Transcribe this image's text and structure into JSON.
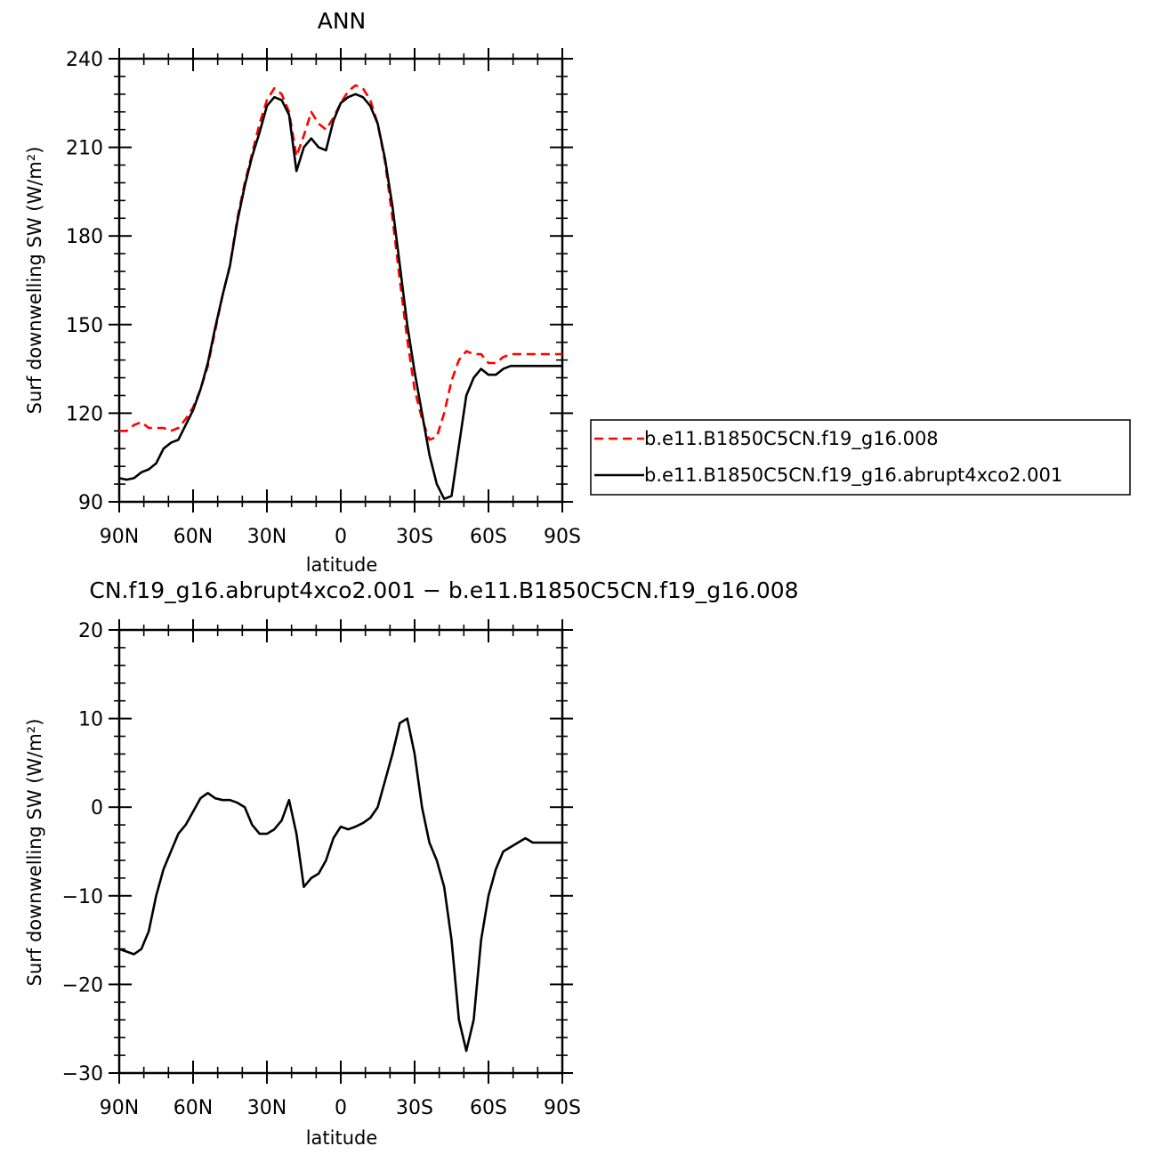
{
  "chart_data": [
    {
      "type": "line",
      "title": "ANN",
      "xlabel": "latitude",
      "ylabel": "Surf downwelling SW (W/m²)",
      "ylim": [
        90,
        240
      ],
      "yticks": [
        "90",
        "120",
        "150",
        "180",
        "210",
        "240"
      ],
      "xticks": [
        "90N",
        "60N",
        "30N",
        "0",
        "30S",
        "60S",
        "90S"
      ],
      "xlim": [
        90,
        -90
      ],
      "legend": "right",
      "grid": false,
      "series": [
        {
          "name": "b.e11.B1850C5CN.f19_g16.008",
          "color": "#ff0000",
          "dash": "dashed",
          "x": [
            90,
            87,
            84,
            81,
            78,
            75,
            72,
            69,
            66,
            63,
            60,
            57,
            54,
            51,
            48,
            45,
            42,
            39,
            36,
            33,
            30,
            27,
            24,
            21,
            18,
            15,
            12,
            9,
            6,
            3,
            0,
            -3,
            -6,
            -9,
            -12,
            -15,
            -18,
            -21,
            -24,
            -27,
            -30,
            -33,
            -36,
            -39,
            -42,
            -45,
            -48,
            -51,
            -54,
            -57,
            -60,
            -63,
            -66,
            -69,
            -72,
            -75,
            -78,
            -81,
            -84,
            -87,
            -90
          ],
          "y": [
            114,
            114,
            116,
            117,
            115,
            115,
            115,
            114,
            115,
            118,
            122,
            128,
            136,
            148,
            160,
            170,
            186,
            198,
            208,
            218,
            226,
            230,
            228,
            222,
            207,
            214,
            222,
            218,
            216,
            220,
            225,
            229,
            231,
            230,
            226,
            218,
            205,
            186,
            165,
            145,
            128,
            118,
            111,
            112,
            120,
            131,
            138,
            141,
            140,
            140,
            137,
            137,
            139,
            140,
            140,
            140,
            140,
            140,
            140,
            140,
            140
          ]
        },
        {
          "name": "b.e11.B1850C5CN.f19_g16.abrupt4xco2.001",
          "color": "#000000",
          "dash": "solid",
          "x": [
            90,
            87,
            84,
            81,
            78,
            75,
            72,
            69,
            66,
            63,
            60,
            57,
            54,
            51,
            48,
            45,
            42,
            39,
            36,
            33,
            30,
            27,
            24,
            21,
            18,
            15,
            12,
            9,
            6,
            3,
            0,
            -3,
            -6,
            -9,
            -12,
            -15,
            -18,
            -21,
            -24,
            -27,
            -30,
            -33,
            -36,
            -39,
            -42,
            -45,
            -48,
            -51,
            -54,
            -57,
            -60,
            -63,
            -66,
            -69,
            -72,
            -75,
            -78,
            -81,
            -84,
            -87,
            -90
          ],
          "y": [
            98,
            97.5,
            98,
            100,
            101,
            103,
            108,
            110,
            111,
            116,
            121,
            128,
            137,
            149,
            160,
            170,
            185,
            197,
            207,
            215,
            224,
            227,
            226,
            221,
            202,
            210,
            213,
            210,
            209,
            219,
            225,
            227,
            228,
            227,
            224,
            218,
            206,
            190,
            170,
            150,
            134,
            120,
            106,
            96,
            91,
            92,
            109,
            126,
            132,
            135,
            133,
            133,
            135,
            136,
            136,
            136,
            136,
            136,
            136,
            136,
            136
          ]
        }
      ]
    },
    {
      "type": "line",
      "title": "CN.f19_g16.abrupt4xco2.001 − b.e11.B1850C5CN.f19_g16.008",
      "xlabel": "latitude",
      "ylabel": "Surf downwelling SW (W/m²)",
      "ylim": [
        -30,
        20
      ],
      "yticks": [
        "−30",
        "−20",
        "−10",
        "0",
        "10",
        "20"
      ],
      "xticks": [
        "90N",
        "60N",
        "30N",
        "0",
        "30S",
        "60S",
        "90S"
      ],
      "xlim": [
        90,
        -90
      ],
      "grid": false,
      "series": [
        {
          "color": "#000000",
          "dash": "solid",
          "x": [
            90,
            87,
            84,
            81,
            78,
            75,
            72,
            69,
            66,
            63,
            60,
            57,
            54,
            51,
            48,
            45,
            42,
            39,
            36,
            33,
            30,
            27,
            24,
            21,
            18,
            15,
            12,
            9,
            6,
            3,
            0,
            -3,
            -6,
            -9,
            -12,
            -15,
            -18,
            -21,
            -24,
            -27,
            -30,
            -33,
            -36,
            -39,
            -42,
            -45,
            -48,
            -51,
            -54,
            -57,
            -60,
            -63,
            -66,
            -69,
            -72,
            -75,
            -78,
            -81,
            -84,
            -87,
            -90
          ],
          "y": [
            -16,
            -16.3,
            -16.6,
            -16,
            -14,
            -10,
            -7,
            -5,
            -3,
            -2,
            -0.5,
            1,
            1.6,
            1,
            0.8,
            0.8,
            0.5,
            0,
            -2,
            -3,
            -3,
            -2.5,
            -1.5,
            0.8,
            -3,
            -9,
            -8,
            -7.5,
            -6,
            -3.5,
            -2.2,
            -2.5,
            -2.2,
            -1.8,
            -1.2,
            0,
            3,
            6,
            9.5,
            10,
            6,
            0,
            -4,
            -6,
            -9,
            -15,
            -24,
            -27.5,
            -24,
            -15,
            -10,
            -7,
            -5,
            -4.5,
            -4,
            -3.5,
            -4,
            -4,
            -4,
            -4,
            -4
          ]
        }
      ]
    }
  ]
}
